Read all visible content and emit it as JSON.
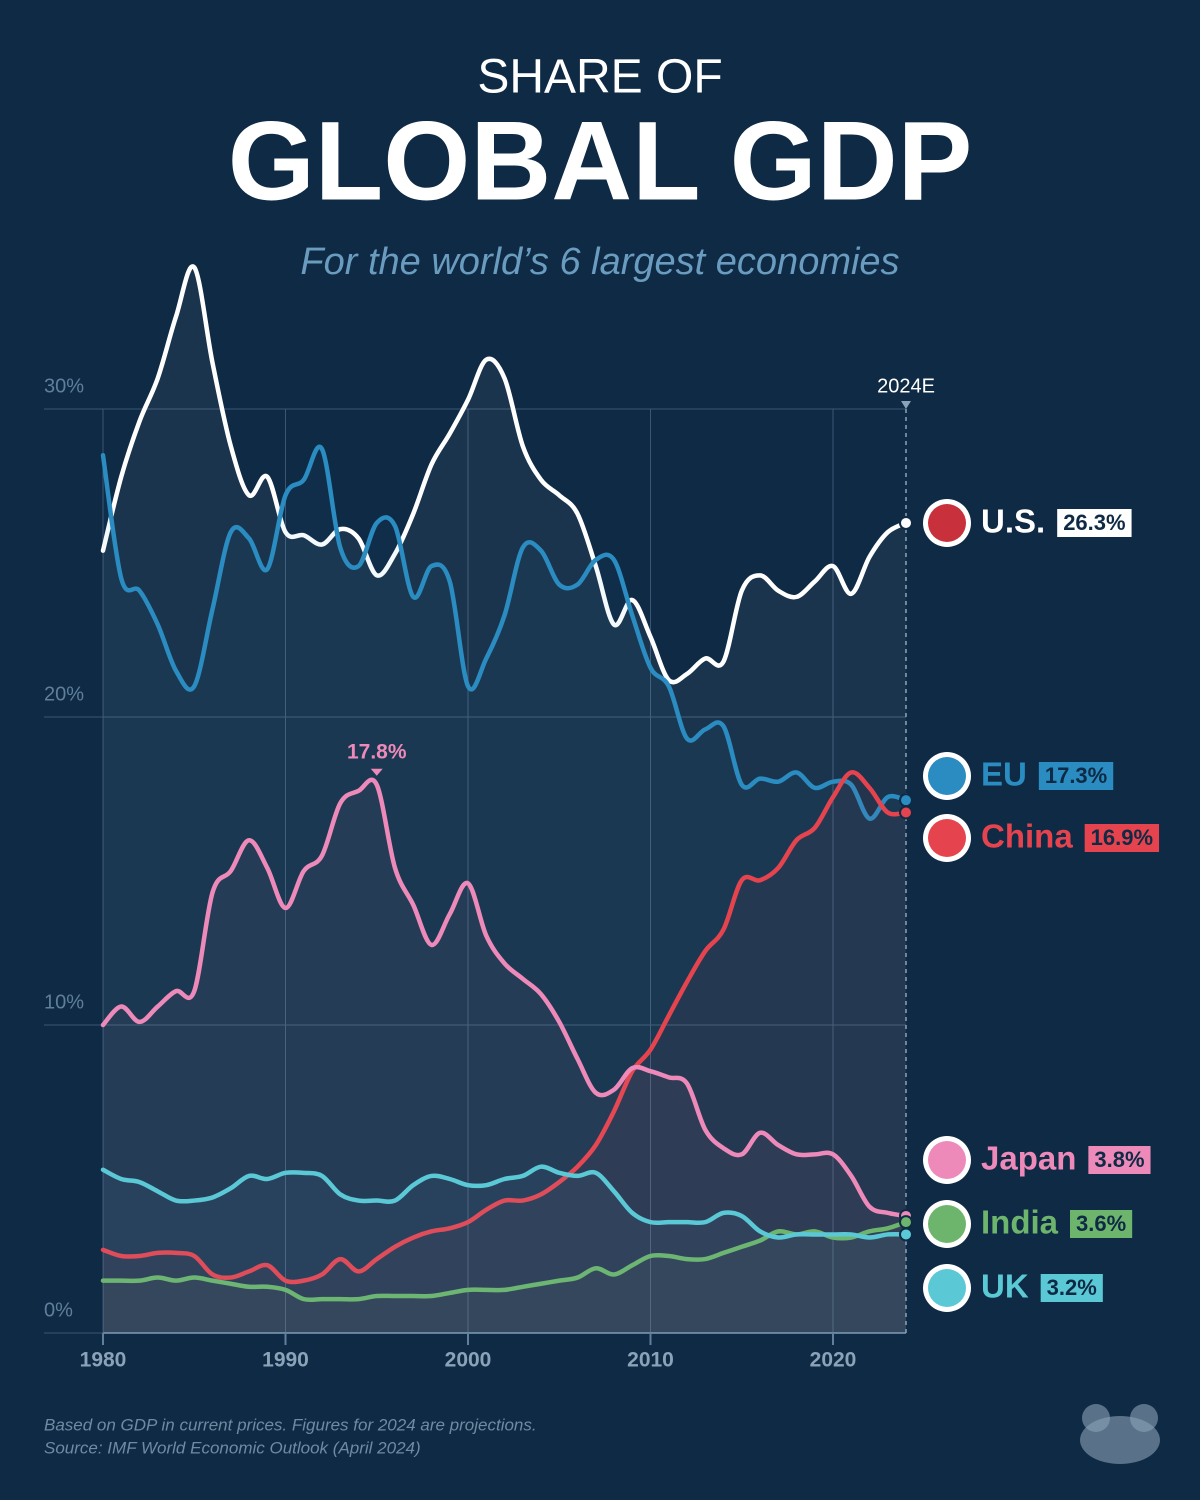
{
  "chart_data": {
    "type": "line",
    "pretitle": "SHARE OF",
    "title": "GLOBAL GDP",
    "subtitle": "For the world’s 6 largest economies",
    "annotation": "2024E",
    "notes": [
      "Based on GDP in current prices. Figures for 2024 are projections.",
      "Source: IMF World Economic Outlook (April 2024)"
    ],
    "x": [
      1980,
      1981,
      1982,
      1983,
      1984,
      1985,
      1986,
      1987,
      1988,
      1989,
      1990,
      1991,
      1992,
      1993,
      1994,
      1995,
      1996,
      1997,
      1998,
      1999,
      2000,
      2001,
      2002,
      2003,
      2004,
      2005,
      2006,
      2007,
      2008,
      2009,
      2010,
      2011,
      2012,
      2013,
      2014,
      2015,
      2016,
      2017,
      2018,
      2019,
      2020,
      2021,
      2022,
      2023,
      2024
    ],
    "xlim": [
      1980,
      2024
    ],
    "xticks": [
      1980,
      1990,
      2000,
      2010,
      2020
    ],
    "ylim": [
      0,
      36
    ],
    "yticks": [
      {
        "value": 0,
        "label": "0%"
      },
      {
        "value": 10,
        "label": "10%"
      },
      {
        "value": 20,
        "label": "20%"
      },
      {
        "value": 30,
        "label": "30%"
      }
    ],
    "grid": true,
    "series": [
      {
        "name": "U.S.",
        "color": "#ffffff",
        "values": [
          25.4,
          27.8,
          29.6,
          31.0,
          33.0,
          34.6,
          31.5,
          28.8,
          27.2,
          27.8,
          26.0,
          25.9,
          25.6,
          26.1,
          25.8,
          24.6,
          25.3,
          26.6,
          28.2,
          29.2,
          30.3,
          31.6,
          31.0,
          28.8,
          27.7,
          27.2,
          26.6,
          24.9,
          23.0,
          23.8,
          22.6,
          21.2,
          21.4,
          21.9,
          21.8,
          24.1,
          24.6,
          24.1,
          23.9,
          24.4,
          24.9,
          24.0,
          25.2,
          26.0,
          26.3
        ],
        "value_labels": [
          null,
          null,
          null,
          null,
          null,
          null,
          null,
          null,
          null,
          null,
          null,
          null,
          null,
          null,
          null,
          null,
          null,
          null,
          null,
          null,
          null,
          null,
          null,
          null,
          null,
          null,
          null,
          null,
          null,
          null,
          null,
          null,
          null,
          null,
          null,
          null,
          null,
          null,
          null,
          null,
          null,
          null,
          null,
          null,
          "26.3%"
        ]
      },
      {
        "name": "EU",
        "color": "#2a8cc0",
        "values": [
          28.5,
          24.5,
          24.1,
          23.0,
          21.5,
          21.0,
          23.5,
          26.0,
          25.8,
          24.8,
          27.2,
          27.7,
          28.7,
          25.5,
          24.9,
          26.3,
          26.2,
          23.9,
          24.9,
          24.4,
          21.0,
          21.9,
          23.3,
          25.5,
          25.4,
          24.3,
          24.3,
          25.1,
          25.1,
          23.3,
          21.6,
          21.0,
          19.3,
          19.6,
          19.7,
          17.8,
          18.0,
          17.9,
          18.2,
          17.7,
          17.9,
          17.8,
          16.7,
          17.4,
          17.3
        ],
        "value_labels": [
          null,
          null,
          null,
          null,
          null,
          null,
          null,
          null,
          null,
          null,
          null,
          null,
          null,
          null,
          null,
          null,
          null,
          null,
          null,
          null,
          null,
          null,
          null,
          null,
          null,
          null,
          null,
          null,
          null,
          null,
          null,
          null,
          null,
          null,
          null,
          null,
          null,
          null,
          null,
          null,
          null,
          null,
          null,
          null,
          "17.3%"
        ]
      },
      {
        "name": "China",
        "color": "#e5444f",
        "values": [
          2.7,
          2.5,
          2.5,
          2.6,
          2.6,
          2.5,
          1.9,
          1.8,
          2.0,
          2.2,
          1.7,
          1.7,
          1.9,
          2.4,
          2.0,
          2.4,
          2.8,
          3.1,
          3.3,
          3.4,
          3.6,
          4.0,
          4.3,
          4.3,
          4.5,
          4.9,
          5.4,
          6.1,
          7.2,
          8.5,
          9.2,
          10.3,
          11.4,
          12.4,
          13.1,
          14.7,
          14.7,
          15.1,
          16.0,
          16.4,
          17.4,
          18.2,
          17.7,
          16.9,
          16.9
        ],
        "value_labels": [
          null,
          null,
          null,
          null,
          null,
          null,
          null,
          null,
          null,
          null,
          null,
          null,
          null,
          null,
          null,
          null,
          null,
          null,
          null,
          null,
          null,
          null,
          null,
          null,
          null,
          null,
          null,
          null,
          null,
          null,
          null,
          null,
          null,
          null,
          null,
          null,
          null,
          null,
          null,
          null,
          null,
          null,
          null,
          null,
          "16.9%"
        ]
      },
      {
        "name": "Japan",
        "color": "#ee8ab9",
        "values": [
          10.0,
          10.6,
          10.1,
          10.6,
          11.1,
          11.1,
          14.3,
          15.0,
          16.0,
          15.1,
          13.8,
          15.0,
          15.5,
          17.2,
          17.6,
          17.8,
          15.1,
          13.9,
          12.6,
          13.6,
          14.6,
          12.9,
          12.0,
          11.5,
          11.0,
          10.1,
          8.9,
          7.8,
          7.9,
          8.6,
          8.5,
          8.3,
          8.1,
          6.6,
          6.0,
          5.8,
          6.5,
          6.1,
          5.8,
          5.8,
          5.8,
          5.1,
          4.1,
          3.9,
          3.8
        ],
        "value_labels": [
          null,
          null,
          null,
          null,
          null,
          null,
          null,
          null,
          null,
          null,
          null,
          null,
          null,
          null,
          null,
          "17.8%",
          null,
          null,
          null,
          null,
          null,
          null,
          null,
          null,
          null,
          null,
          null,
          null,
          null,
          null,
          null,
          null,
          null,
          null,
          null,
          null,
          null,
          null,
          null,
          null,
          null,
          null,
          null,
          null,
          "3.8%"
        ]
      },
      {
        "name": "India",
        "color": "#6db56d",
        "values": [
          1.7,
          1.7,
          1.7,
          1.8,
          1.7,
          1.8,
          1.7,
          1.6,
          1.5,
          1.5,
          1.4,
          1.1,
          1.1,
          1.1,
          1.1,
          1.2,
          1.2,
          1.2,
          1.2,
          1.3,
          1.4,
          1.4,
          1.4,
          1.5,
          1.6,
          1.7,
          1.8,
          2.1,
          1.9,
          2.2,
          2.5,
          2.5,
          2.4,
          2.4,
          2.6,
          2.8,
          3.0,
          3.3,
          3.2,
          3.3,
          3.1,
          3.1,
          3.3,
          3.4,
          3.6
        ],
        "value_labels": [
          null,
          null,
          null,
          null,
          null,
          null,
          null,
          null,
          null,
          null,
          null,
          null,
          null,
          null,
          null,
          null,
          null,
          null,
          null,
          null,
          null,
          null,
          null,
          null,
          null,
          null,
          null,
          null,
          null,
          null,
          null,
          null,
          null,
          null,
          null,
          null,
          null,
          null,
          null,
          null,
          null,
          null,
          null,
          null,
          "3.6%"
        ]
      },
      {
        "name": "UK",
        "color": "#5bc8d6",
        "values": [
          5.3,
          5.0,
          4.9,
          4.6,
          4.3,
          4.3,
          4.4,
          4.7,
          5.1,
          5.0,
          5.2,
          5.2,
          5.1,
          4.5,
          4.3,
          4.3,
          4.3,
          4.8,
          5.1,
          5.0,
          4.8,
          4.8,
          5.0,
          5.1,
          5.4,
          5.2,
          5.1,
          5.2,
          4.6,
          3.9,
          3.6,
          3.6,
          3.6,
          3.6,
          3.9,
          3.8,
          3.3,
          3.1,
          3.2,
          3.2,
          3.2,
          3.2,
          3.1,
          3.2,
          3.2
        ],
        "value_labels": [
          null,
          null,
          null,
          null,
          null,
          null,
          null,
          null,
          null,
          null,
          null,
          null,
          null,
          null,
          null,
          null,
          null,
          null,
          null,
          null,
          null,
          null,
          null,
          null,
          null,
          null,
          null,
          null,
          null,
          null,
          null,
          null,
          null,
          null,
          null,
          null,
          null,
          null,
          null,
          null,
          null,
          null,
          null,
          null,
          "3.2%"
        ]
      }
    ]
  }
}
